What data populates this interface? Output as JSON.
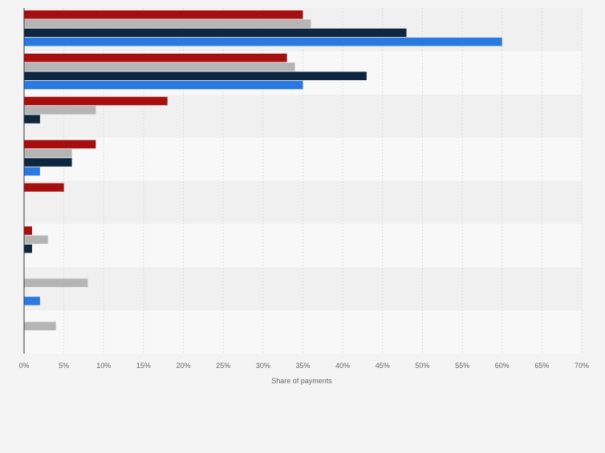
{
  "chart_data": {
    "type": "bar",
    "orientation": "horizontal",
    "categories": [
      "",
      "",
      "",
      "",
      "",
      "",
      "",
      ""
    ],
    "series": [
      {
        "color": "#a50f0f",
        "values": [
          35,
          33,
          18,
          9,
          5,
          1,
          0,
          0
        ]
      },
      {
        "color": "#b5b5b5",
        "values": [
          36,
          34,
          9,
          6,
          0,
          3,
          8,
          4
        ]
      },
      {
        "color": "#0f2640",
        "values": [
          48,
          43,
          2,
          6,
          0,
          1,
          0,
          0
        ]
      },
      {
        "color": "#2a79e0",
        "values": [
          60,
          35,
          0,
          2,
          0,
          0,
          2,
          0
        ]
      }
    ],
    "xlim": [
      0,
      70
    ],
    "xticks": [
      "0%",
      "5%",
      "10%",
      "15%",
      "20%",
      "25%",
      "30%",
      "35%",
      "40%",
      "45%",
      "50%",
      "55%",
      "60%",
      "65%",
      "70%"
    ],
    "xlabel": "Share of payments",
    "ylabel": "",
    "title": "",
    "grid": true,
    "legend": "none"
  }
}
